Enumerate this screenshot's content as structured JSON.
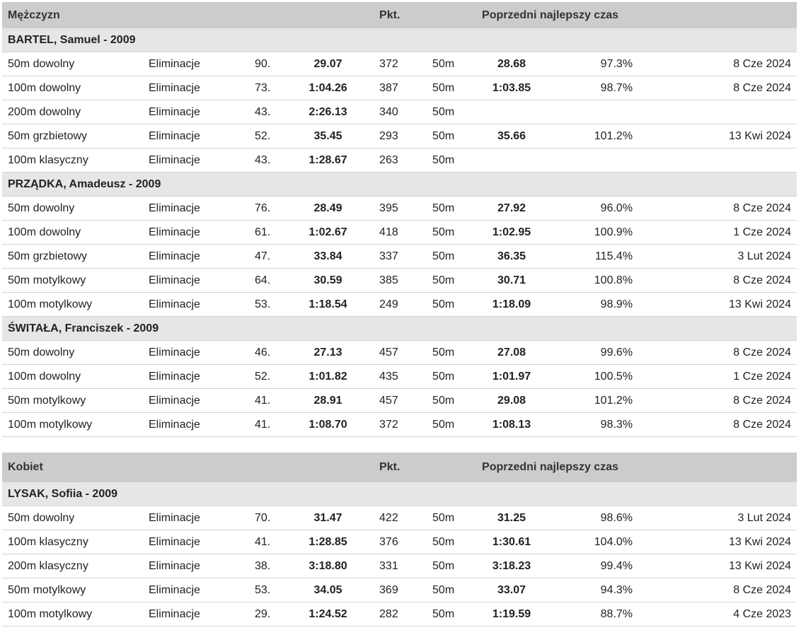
{
  "sections": [
    {
      "gender": "Mężczyzn",
      "pkt_label": "Pkt.",
      "prev_label": "Poprzedni najlepszy czas",
      "athletes": [
        {
          "name": "BARTEL, Samuel - 2009",
          "results": [
            {
              "event": "50m dowolny",
              "round": "Eliminacje",
              "place": "90.",
              "time": "29.07",
              "points": "372",
              "course": "50m",
              "prev_time": "28.68",
              "pct": "97.3%",
              "date": "8 Cze 2024"
            },
            {
              "event": "100m dowolny",
              "round": "Eliminacje",
              "place": "73.",
              "time": "1:04.26",
              "points": "387",
              "course": "50m",
              "prev_time": "1:03.85",
              "pct": "98.7%",
              "date": "8 Cze 2024"
            },
            {
              "event": "200m dowolny",
              "round": "Eliminacje",
              "place": "43.",
              "time": "2:26.13",
              "points": "340",
              "course": "50m",
              "prev_time": "",
              "pct": "",
              "date": ""
            },
            {
              "event": "50m grzbietowy",
              "round": "Eliminacje",
              "place": "52.",
              "time": "35.45",
              "points": "293",
              "course": "50m",
              "prev_time": "35.66",
              "pct": "101.2%",
              "date": "13 Kwi 2024"
            },
            {
              "event": "100m klasyczny",
              "round": "Eliminacje",
              "place": "43.",
              "time": "1:28.67",
              "points": "263",
              "course": "50m",
              "prev_time": "",
              "pct": "",
              "date": ""
            }
          ]
        },
        {
          "name": "PRZĄDKA, Amadeusz - 2009",
          "results": [
            {
              "event": "50m dowolny",
              "round": "Eliminacje",
              "place": "76.",
              "time": "28.49",
              "points": "395",
              "course": "50m",
              "prev_time": "27.92",
              "pct": "96.0%",
              "date": "8 Cze 2024"
            },
            {
              "event": "100m dowolny",
              "round": "Eliminacje",
              "place": "61.",
              "time": "1:02.67",
              "points": "418",
              "course": "50m",
              "prev_time": "1:02.95",
              "pct": "100.9%",
              "date": "1 Cze 2024"
            },
            {
              "event": "50m grzbietowy",
              "round": "Eliminacje",
              "place": "47.",
              "time": "33.84",
              "points": "337",
              "course": "50m",
              "prev_time": "36.35",
              "pct": "115.4%",
              "date": "3 Lut 2024"
            },
            {
              "event": "50m motylkowy",
              "round": "Eliminacje",
              "place": "64.",
              "time": "30.59",
              "points": "385",
              "course": "50m",
              "prev_time": "30.71",
              "pct": "100.8%",
              "date": "8 Cze 2024"
            },
            {
              "event": "100m motylkowy",
              "round": "Eliminacje",
              "place": "53.",
              "time": "1:18.54",
              "points": "249",
              "course": "50m",
              "prev_time": "1:18.09",
              "pct": "98.9%",
              "date": "13 Kwi 2024"
            }
          ]
        },
        {
          "name": "ŚWITAŁA, Franciszek - 2009",
          "results": [
            {
              "event": "50m dowolny",
              "round": "Eliminacje",
              "place": "46.",
              "time": "27.13",
              "points": "457",
              "course": "50m",
              "prev_time": "27.08",
              "pct": "99.6%",
              "date": "8 Cze 2024"
            },
            {
              "event": "100m dowolny",
              "round": "Eliminacje",
              "place": "52.",
              "time": "1:01.82",
              "points": "435",
              "course": "50m",
              "prev_time": "1:01.97",
              "pct": "100.5%",
              "date": "1 Cze 2024"
            },
            {
              "event": "50m motylkowy",
              "round": "Eliminacje",
              "place": "41.",
              "time": "28.91",
              "points": "457",
              "course": "50m",
              "prev_time": "29.08",
              "pct": "101.2%",
              "date": "8 Cze 2024"
            },
            {
              "event": "100m motylkowy",
              "round": "Eliminacje",
              "place": "41.",
              "time": "1:08.70",
              "points": "372",
              "course": "50m",
              "prev_time": "1:08.13",
              "pct": "98.3%",
              "date": "8 Cze 2024"
            }
          ]
        }
      ]
    },
    {
      "gender": "Kobiet",
      "pkt_label": "Pkt.",
      "prev_label": "Poprzedni najlepszy czas",
      "athletes": [
        {
          "name": "LYSAK, Sofiia - 2009",
          "results": [
            {
              "event": "50m dowolny",
              "round": "Eliminacje",
              "place": "70.",
              "time": "31.47",
              "points": "422",
              "course": "50m",
              "prev_time": "31.25",
              "pct": "98.6%",
              "date": "3 Lut 2024"
            },
            {
              "event": "100m klasyczny",
              "round": "Eliminacje",
              "place": "41.",
              "time": "1:28.85",
              "points": "376",
              "course": "50m",
              "prev_time": "1:30.61",
              "pct": "104.0%",
              "date": "13 Kwi 2024"
            },
            {
              "event": "200m klasyczny",
              "round": "Eliminacje",
              "place": "38.",
              "time": "3:18.80",
              "points": "331",
              "course": "50m",
              "prev_time": "3:18.23",
              "pct": "99.4%",
              "date": "13 Kwi 2024"
            },
            {
              "event": "50m motylkowy",
              "round": "Eliminacje",
              "place": "53.",
              "time": "34.05",
              "points": "369",
              "course": "50m",
              "prev_time": "33.07",
              "pct": "94.3%",
              "date": "8 Cze 2024"
            },
            {
              "event": "100m motylkowy",
              "round": "Eliminacje",
              "place": "29.",
              "time": "1:24.52",
              "points": "282",
              "course": "50m",
              "prev_time": "1:19.59",
              "pct": "88.7%",
              "date": "4 Cze 2023"
            }
          ]
        }
      ]
    }
  ]
}
